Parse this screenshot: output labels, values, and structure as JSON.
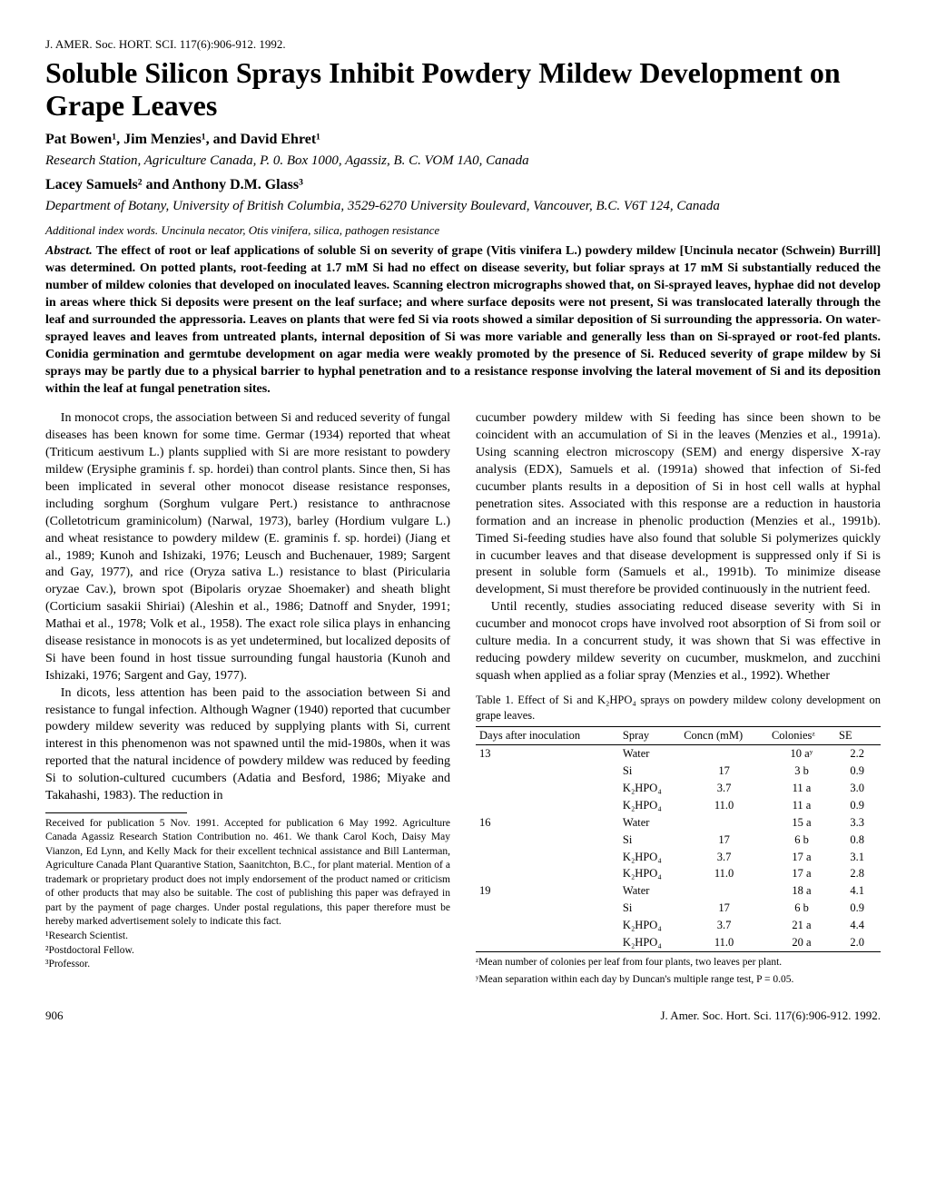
{
  "header": {
    "journal_ref": "J. AMER. Soc. HORT. SCI. 117(6):906-912. 1992."
  },
  "title": "Soluble Silicon Sprays Inhibit Powdery Mildew Development on Grape Leaves",
  "author_block1": {
    "authors": "Pat Bowen¹, Jim Menzies¹, and David Ehret¹",
    "affiliation": "Research Station, Agriculture Canada, P. 0. Box 1000, Agassiz, B. C. VOM 1A0, Canada"
  },
  "author_block2": {
    "authors": "Lacey Samuels² and Anthony D.M. Glass³",
    "affiliation": "Department of Botany, University of British Columbia, 3529-6270 University Boulevard, Vancouver, B.C. V6T 124, Canada"
  },
  "index_words": "Additional index words. Uncinula necator, Otis vinifera, silica, pathogen resistance",
  "abstract": {
    "label": "Abstract.",
    "text": "The effect of root or leaf applications of soluble Si on severity of grape (Vitis vinifera L.) powdery mildew [Uncinula necator (Schwein) Burrill] was determined. On potted plants, root-feeding at 1.7 mM Si had no effect on disease severity, but foliar sprays at 17 mM Si substantially reduced the number of mildew colonies that developed on inoculated leaves. Scanning electron micrographs showed that, on Si-sprayed leaves, hyphae did not develop in areas where thick Si deposits were present on the leaf surface; and where surface deposits were not present, Si was translocated laterally through the leaf and surrounded the appressoria. Leaves on plants that were fed Si via roots showed a similar deposition of Si surrounding the appressoria. On water-sprayed leaves and leaves from untreated plants, internal deposition of Si was more variable and generally less than on Si-sprayed or root-fed plants. Conidia germination and germtube development on agar media were weakly promoted by the presence of Si. Reduced severity of grape mildew by Si sprays may be partly due to a physical barrier to hyphal penetration and to a resistance response involving the lateral movement of Si and its deposition within the leaf at fungal penetration sites."
  },
  "body": {
    "p1": "In monocot crops, the association between Si and reduced severity of fungal diseases has been known for some time. Germar (1934) reported that wheat (Triticum aestivum L.) plants supplied with Si are more resistant to powdery mildew (Erysiphe graminis f. sp. hordei) than control plants. Since then, Si has been implicated in several other monocot disease resistance responses, including sorghum (Sorghum vulgare Pert.) resistance to anthracnose (Colletotricum graminicolum) (Narwal, 1973), barley (Hordium vulgare L.) and wheat resistance to powdery mildew (E. graminis f. sp. hordei) (Jiang et al., 1989; Kunoh and Ishizaki, 1976; Leusch and Buchenauer, 1989; Sargent and Gay, 1977), and rice (Oryza sativa L.) resistance to blast (Piricularia oryzae Cav.), brown spot (Bipolaris oryzae Shoemaker) and sheath blight (Corticium sasakii Shiriai) (Aleshin et al., 1986; Datnoff and Snyder, 1991; Mathai et al., 1978; Volk et al., 1958). The exact role silica plays in enhancing disease resistance in monocots is as yet undetermined, but localized deposits of Si have been found in host tissue surrounding fungal haustoria (Kunoh and Ishizaki, 1976; Sargent and Gay, 1977).",
    "p2": "In dicots, less attention has been paid to the association between Si and resistance to fungal infection. Although Wagner (1940) reported that cucumber powdery mildew severity was reduced by supplying plants with Si, current interest in this phenomenon was not spawned until the mid-1980s, when it was reported that the natural incidence of powdery mildew was reduced by feeding Si to solution-cultured cucumbers (Adatia and Besford, 1986; Miyake and Takahashi, 1983). The reduction in",
    "p3": "cucumber powdery mildew with Si feeding has since been shown to be coincident with an accumulation of Si in the leaves (Menzies et al., 1991a). Using scanning electron microscopy (SEM) and energy dispersive X-ray analysis (EDX), Samuels et al. (1991a) showed that infection of Si-fed cucumber plants results in a deposition of Si in host cell walls at hyphal penetration sites. Associated with this response are a reduction in haustoria formation and an increase in phenolic production (Menzies et al., 1991b). Timed Si-feeding studies have also found that soluble Si polymerizes quickly in cucumber leaves and that disease development is suppressed only if Si is present in soluble form (Samuels et al., 1991b). To minimize disease development, Si must therefore be provided continuously in the nutrient feed.",
    "p4": "Until recently, studies associating reduced disease severity with Si in cucumber and monocot crops have involved root absorption of Si from soil or culture media. In a concurrent study, it was shown that Si was effective in reducing powdery mildew severity on cucumber, muskmelon, and zucchini squash when applied as a foliar spray (Menzies et al., 1992). Whether"
  },
  "footnotes": {
    "received": "Received for publication 5 Nov. 1991. Accepted for publication 6 May 1992. Agriculture Canada Agassiz Research Station Contribution no. 461. We thank Carol Koch, Daisy May Vianzon, Ed Lynn, and Kelly Mack for their excellent technical assistance and Bill Lanterman, Agriculture Canada Plant Quarantive Station, Saanitchton, B.C., for plant material. Mention of a trademark or proprietary product does not imply endorsement of the product named or criticism of other products that may also be suitable. The cost of publishing this paper was defrayed in part by the payment of page charges. Under postal regulations, this paper therefore must be hereby marked advertisement solely to indicate this fact.",
    "f1": "¹Research Scientist.",
    "f2": "²Postdoctoral Fellow.",
    "f3": "³Professor."
  },
  "table1": {
    "caption": "Table 1. Effect of Si and K₂HPO₄ sprays on powdery mildew colony development on grape leaves.",
    "headers": {
      "h1": "Days after inoculation",
      "h2": "Spray",
      "h3": "Concn (mM)",
      "h4": "Coloniesᶻ",
      "h5": "SE"
    },
    "rows": [
      [
        "13",
        "Water",
        "",
        "10 aʸ",
        "2.2"
      ],
      [
        "",
        "Si",
        "17",
        "3 b",
        "0.9"
      ],
      [
        "",
        "K₂HPO₄",
        "3.7",
        "11 a",
        "3.0"
      ],
      [
        "",
        "K₂HPO₄",
        "11.0",
        "11 a",
        "0.9"
      ],
      [
        "16",
        "Water",
        "",
        "15 a",
        "3.3"
      ],
      [
        "",
        "Si",
        "17",
        "6 b",
        "0.8"
      ],
      [
        "",
        "K₂HPO₄",
        "3.7",
        "17 a",
        "3.1"
      ],
      [
        "",
        "K₂HPO₄",
        "11.0",
        "17 a",
        "2.8"
      ],
      [
        "19",
        "Water",
        "",
        "18 a",
        "4.1"
      ],
      [
        "",
        "Si",
        "17",
        "6 b",
        "0.9"
      ],
      [
        "",
        "K₂HPO₄",
        "3.7",
        "21 a",
        "4.4"
      ],
      [
        "",
        "K₂HPO₄",
        "11.0",
        "20 a",
        "2.0"
      ]
    ],
    "note_z": "ᶻMean number of colonies per leaf from four plants, two leaves per plant.",
    "note_y": "ʸMean separation within each day by Duncan's multiple range test, P = 0.05."
  },
  "footer": {
    "page": "906",
    "ref": "J. Amer. Soc. Hort. Sci. 117(6):906-912. 1992."
  }
}
